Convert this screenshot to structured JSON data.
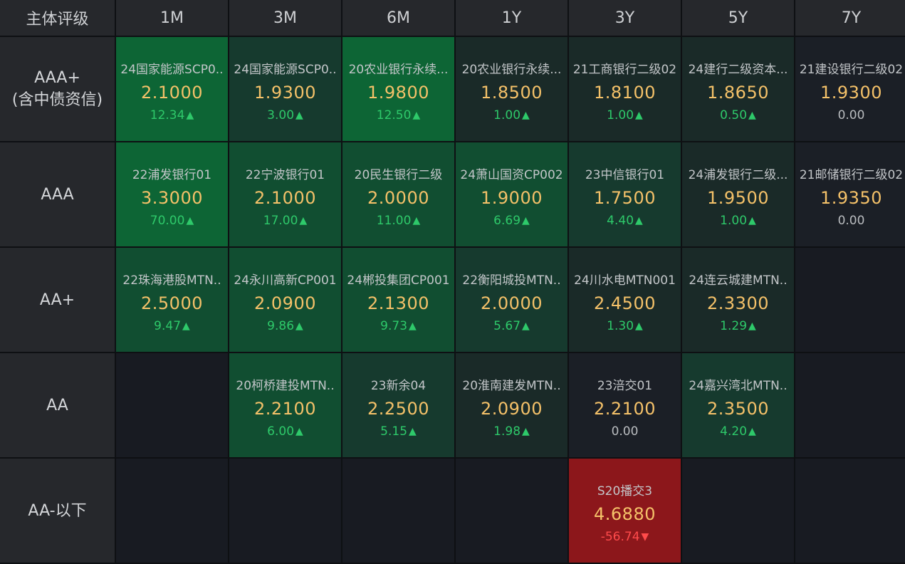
{
  "header": {
    "corner": "主体评级",
    "tenors": [
      "1M",
      "3M",
      "6M",
      "1Y",
      "3Y",
      "5Y",
      "7Y"
    ]
  },
  "rows": [
    {
      "label_lines": [
        "AAA+",
        "(含中债资信)"
      ],
      "cells": [
        {
          "name": "24国家能源SCP0..",
          "price": "2.1000",
          "change": "12.34",
          "dir": "up",
          "shade": "c1"
        },
        {
          "name": "24国家能源SCP0..",
          "price": "1.9300",
          "change": "3.00",
          "dir": "up",
          "shade": "c3"
        },
        {
          "name": "20农业银行永续...",
          "price": "1.9800",
          "change": "12.50",
          "dir": "up",
          "shade": "c1"
        },
        {
          "name": "20农业银行永续...",
          "price": "1.8500",
          "change": "1.00",
          "dir": "up",
          "shade": "c4"
        },
        {
          "name": "21工商银行二级02",
          "price": "1.8100",
          "change": "1.00",
          "dir": "up",
          "shade": "c4"
        },
        {
          "name": "24建行二级资本...",
          "price": "1.8650",
          "change": "0.50",
          "dir": "up",
          "shade": "c4"
        },
        {
          "name": "21建设银行二级02",
          "price": "1.9300",
          "change": "0.00",
          "dir": "flat",
          "shade": "cneu"
        }
      ]
    },
    {
      "label_lines": [
        "AAA"
      ],
      "cells": [
        {
          "name": "22浦发银行01",
          "price": "3.3000",
          "change": "70.00",
          "dir": "up",
          "shade": "c1"
        },
        {
          "name": "22宁波银行01",
          "price": "2.1000",
          "change": "17.00",
          "dir": "up",
          "shade": "c2"
        },
        {
          "name": "20民生银行二级",
          "price": "2.0000",
          "change": "11.00",
          "dir": "up",
          "shade": "c2"
        },
        {
          "name": "24萧山国资CP002",
          "price": "1.9000",
          "change": "6.69",
          "dir": "up",
          "shade": "c2"
        },
        {
          "name": "23中信银行01",
          "price": "1.7500",
          "change": "4.40",
          "dir": "up",
          "shade": "c3"
        },
        {
          "name": "24浦发银行二级...",
          "price": "1.9500",
          "change": "1.00",
          "dir": "up",
          "shade": "c4"
        },
        {
          "name": "21邮储银行二级02",
          "price": "1.9350",
          "change": "0.00",
          "dir": "flat",
          "shade": "cneu"
        }
      ]
    },
    {
      "label_lines": [
        "AA+"
      ],
      "cells": [
        {
          "name": "22珠海港股MTN..",
          "price": "2.5000",
          "change": "9.47",
          "dir": "up",
          "shade": "c2"
        },
        {
          "name": "24永川高新CP001",
          "price": "2.0900",
          "change": "9.86",
          "dir": "up",
          "shade": "c2"
        },
        {
          "name": "24郴投集团CP001",
          "price": "2.1300",
          "change": "9.73",
          "dir": "up",
          "shade": "c2"
        },
        {
          "name": "22衡阳城投MTN..",
          "price": "2.0000",
          "change": "5.67",
          "dir": "up",
          "shade": "c3"
        },
        {
          "name": "24川水电MTN001",
          "price": "2.4500",
          "change": "1.30",
          "dir": "up",
          "shade": "c4"
        },
        {
          "name": "24连云城建MTN..",
          "price": "2.3300",
          "change": "1.29",
          "dir": "up",
          "shade": "c4"
        },
        null
      ]
    },
    {
      "label_lines": [
        "AA"
      ],
      "cells": [
        null,
        {
          "name": "20柯桥建投MTN..",
          "price": "2.2100",
          "change": "6.00",
          "dir": "up",
          "shade": "c2"
        },
        {
          "name": "23新余04",
          "price": "2.2500",
          "change": "5.15",
          "dir": "up",
          "shade": "c3"
        },
        {
          "name": "20淮南建发MTN..",
          "price": "2.0900",
          "change": "1.98",
          "dir": "up",
          "shade": "c4"
        },
        {
          "name": "23涪交01",
          "price": "2.2100",
          "change": "0.00",
          "dir": "flat",
          "shade": "cneu"
        },
        {
          "name": "24嘉兴湾北MTN..",
          "price": "2.3500",
          "change": "4.20",
          "dir": "up",
          "shade": "c3"
        },
        null
      ]
    },
    {
      "label_lines": [
        "AA-以下"
      ],
      "cells": [
        null,
        null,
        null,
        null,
        {
          "name": "S20播交3",
          "price": "4.6880",
          "change": "-56.74",
          "dir": "down",
          "shade": "cred"
        },
        null,
        null
      ]
    }
  ],
  "arrows": {
    "up": "▲",
    "down": "▼"
  },
  "colors": {
    "price": "#f4c169",
    "up": "#2ec96a",
    "down": "#ff4b4b",
    "strong_green": "#0d6535",
    "red": "#8c171b"
  }
}
